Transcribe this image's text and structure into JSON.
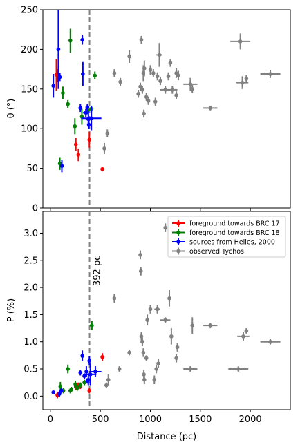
{
  "chart_data": [
    {
      "type": "scatter",
      "panel": "top",
      "xlabel": "",
      "ylabel": "θ (°)",
      "xlim": [
        -75,
        2400
      ],
      "ylim": [
        0,
        250
      ],
      "yticks": [
        "0",
        "50",
        "100",
        "150",
        "200",
        "250"
      ],
      "vline": {
        "x": 392,
        "style": "dashed",
        "color": "#808080"
      },
      "series": [
        {
          "key": "brc17",
          "color": "#ff0000",
          "points": [
            {
              "x": 60,
              "y": 168,
              "yerr": 20,
              "xerr": 0
            },
            {
              "x": 75,
              "y": 167,
              "yerr": 8,
              "xerr": 0
            },
            {
              "x": 255,
              "y": 80,
              "yerr": 8,
              "xerr": 0
            },
            {
              "x": 280,
              "y": 67,
              "yerr": 8,
              "xerr": 0
            },
            {
              "x": 390,
              "y": 86,
              "yerr": 10,
              "xerr": 0
            },
            {
              "x": 520,
              "y": 49,
              "yerr": 3,
              "xerr": 0
            }
          ]
        },
        {
          "key": "brc18",
          "color": "#008000",
          "points": [
            {
              "x": 95,
              "y": 56,
              "yerr": 8,
              "xerr": 0
            },
            {
              "x": 125,
              "y": 145,
              "yerr": 8,
              "xerr": 0
            },
            {
              "x": 175,
              "y": 131,
              "yerr": 5,
              "xerr": 0
            },
            {
              "x": 200,
              "y": 211,
              "yerr": 15,
              "xerr": 0
            },
            {
              "x": 245,
              "y": 103,
              "yerr": 10,
              "xerr": 0
            },
            {
              "x": 315,
              "y": 115,
              "yerr": 10,
              "xerr": 0
            },
            {
              "x": 375,
              "y": 123,
              "yerr": 5,
              "xerr": 0
            },
            {
              "x": 410,
              "y": 125,
              "yerr": 4,
              "xerr": 0
            },
            {
              "x": 445,
              "y": 167,
              "yerr": 5,
              "xerr": 0
            }
          ]
        },
        {
          "key": "heiles",
          "color": "#0000ff",
          "points": [
            {
              "x": 30,
              "y": 154,
              "yerr": 15,
              "xerr": 0
            },
            {
              "x": 80,
              "y": 200,
              "yerr": 50,
              "xerr": 0
            },
            {
              "x": 95,
              "y": 165,
              "yerr": 5,
              "xerr": 0
            },
            {
              "x": 115,
              "y": 53,
              "yerr": 8,
              "xerr": 0
            },
            {
              "x": 300,
              "y": 126,
              "yerr": 5,
              "xerr": 0
            },
            {
              "x": 320,
              "y": 212,
              "yerr": 6,
              "xerr": 0
            },
            {
              "x": 325,
              "y": 169,
              "yerr": 15,
              "xerr": 0
            },
            {
              "x": 355,
              "y": 120,
              "yerr": 5,
              "xerr": 30
            },
            {
              "x": 370,
              "y": 127,
              "yerr": 4,
              "xerr": 0
            },
            {
              "x": 380,
              "y": 112,
              "yerr": 10,
              "xerr": 0
            },
            {
              "x": 385,
              "y": 105,
              "yerr": 5,
              "xerr": 0
            },
            {
              "x": 410,
              "y": 113,
              "yerr": 15,
              "xerr": 100
            }
          ]
        },
        {
          "key": "tychos",
          "color": "#808080",
          "points": [
            {
              "x": 540,
              "y": 75,
              "yerr": 7,
              "xerr": 0
            },
            {
              "x": 570,
              "y": 94,
              "yerr": 5,
              "xerr": 0
            },
            {
              "x": 640,
              "y": 170,
              "yerr": 5,
              "xerr": 0
            },
            {
              "x": 700,
              "y": 159,
              "yerr": 5,
              "xerr": 0
            },
            {
              "x": 790,
              "y": 191,
              "yerr": 8,
              "xerr": 0
            },
            {
              "x": 880,
              "y": 144,
              "yerr": 5,
              "xerr": 0
            },
            {
              "x": 900,
              "y": 153,
              "yerr": 5,
              "xerr": 0
            },
            {
              "x": 910,
              "y": 212,
              "yerr": 5,
              "xerr": 0
            },
            {
              "x": 920,
              "y": 149,
              "yerr": 5,
              "xerr": 0
            },
            {
              "x": 930,
              "y": 170,
              "yerr": 10,
              "xerr": 0
            },
            {
              "x": 935,
              "y": 119,
              "yerr": 5,
              "xerr": 0
            },
            {
              "x": 940,
              "y": 176,
              "yerr": 10,
              "xerr": 0
            },
            {
              "x": 960,
              "y": 140,
              "yerr": 5,
              "xerr": 0
            },
            {
              "x": 980,
              "y": 135,
              "yerr": 5,
              "xerr": 0
            },
            {
              "x": 1000,
              "y": 174,
              "yerr": 6,
              "xerr": 0
            },
            {
              "x": 1030,
              "y": 170,
              "yerr": 5,
              "xerr": 0
            },
            {
              "x": 1050,
              "y": 134,
              "yerr": 5,
              "xerr": 0
            },
            {
              "x": 1070,
              "y": 166,
              "yerr": 5,
              "xerr": 0
            },
            {
              "x": 1090,
              "y": 193,
              "yerr": 15,
              "xerr": 30
            },
            {
              "x": 1100,
              "y": 160,
              "yerr": 5,
              "xerr": 0
            },
            {
              "x": 1150,
              "y": 149,
              "yerr": 5,
              "xerr": 50
            },
            {
              "x": 1180,
              "y": 166,
              "yerr": 5,
              "xerr": 0
            },
            {
              "x": 1200,
              "y": 183,
              "yerr": 5,
              "xerr": 0
            },
            {
              "x": 1220,
              "y": 149,
              "yerr": 5,
              "xerr": 50
            },
            {
              "x": 1260,
              "y": 142,
              "yerr": 5,
              "xerr": 0
            },
            {
              "x": 1260,
              "y": 170,
              "yerr": 6,
              "xerr": 0
            },
            {
              "x": 1280,
              "y": 167,
              "yerr": 6,
              "xerr": 0
            },
            {
              "x": 1400,
              "y": 156,
              "yerr": 8,
              "xerr": 70
            },
            {
              "x": 1420,
              "y": 150,
              "yerr": 5,
              "xerr": 0
            },
            {
              "x": 1600,
              "y": 126,
              "yerr": 3,
              "xerr": 70
            },
            {
              "x": 1900,
              "y": 210,
              "yerr": 10,
              "xerr": 100
            },
            {
              "x": 1920,
              "y": 158,
              "yerr": 8,
              "xerr": 60
            },
            {
              "x": 1960,
              "y": 163,
              "yerr": 5,
              "xerr": 0
            },
            {
              "x": 2200,
              "y": 169,
              "yerr": 5,
              "xerr": 100
            }
          ]
        }
      ]
    },
    {
      "type": "scatter",
      "panel": "bottom",
      "xlabel": "Distance (pc)",
      "ylabel": "P (%)",
      "xlim": [
        -75,
        2400
      ],
      "ylim": [
        -0.25,
        3.4
      ],
      "xticks": [
        "0",
        "500",
        "1000",
        "1500",
        "2000"
      ],
      "yticks": [
        "0.0",
        "0.5",
        "1.0",
        "1.5",
        "2.0",
        "2.5",
        "3.0"
      ],
      "vline": {
        "x": 392,
        "style": "dashed",
        "color": "#808080",
        "label": "392 pc"
      },
      "legend": {
        "position": "top-right",
        "entries": [
          {
            "key": "brc17",
            "label": "foreground towards BRC 17",
            "color": "#ff0000"
          },
          {
            "key": "brc18",
            "label": "foreground towards BRC 18",
            "color": "#008000"
          },
          {
            "key": "heiles",
            "label": "sources from Heiles, 2000",
            "color": "#0000ff"
          },
          {
            "key": "tychos",
            "label": "observed Tychos",
            "color": "#808080"
          }
        ]
      },
      "series": [
        {
          "key": "brc17",
          "color": "#ff0000",
          "points": [
            {
              "x": 70,
              "y": 0.02,
              "yerr": 0.06,
              "xerr": 0
            },
            {
              "x": 255,
              "y": 0.17,
              "yerr": 0.06,
              "xerr": 0
            },
            {
              "x": 280,
              "y": 0.2,
              "yerr": 0.05,
              "xerr": 0
            },
            {
              "x": 300,
              "y": 0.18,
              "yerr": 0.05,
              "xerr": 0
            },
            {
              "x": 390,
              "y": 0.1,
              "yerr": 0.05,
              "xerr": 0
            },
            {
              "x": 520,
              "y": 0.72,
              "yerr": 0.07,
              "xerr": 0
            }
          ]
        },
        {
          "key": "brc18",
          "color": "#008000",
          "points": [
            {
              "x": 100,
              "y": 0.18,
              "yerr": 0.08,
              "xerr": 0
            },
            {
              "x": 130,
              "y": 0.1,
              "yerr": 0.05,
              "xerr": 0
            },
            {
              "x": 175,
              "y": 0.5,
              "yerr": 0.08,
              "xerr": 0
            },
            {
              "x": 200,
              "y": 0.1,
              "yerr": 0.05,
              "xerr": 0
            },
            {
              "x": 210,
              "y": 0.12,
              "yerr": 0.05,
              "xerr": 0
            },
            {
              "x": 250,
              "y": 0.22,
              "yerr": 0.06,
              "xerr": 0
            },
            {
              "x": 270,
              "y": 0.15,
              "yerr": 0.05,
              "xerr": 0
            },
            {
              "x": 300,
              "y": 0.2,
              "yerr": 0.05,
              "xerr": 0
            },
            {
              "x": 340,
              "y": 0.25,
              "yerr": 0.05,
              "xerr": 0
            },
            {
              "x": 415,
              "y": 1.3,
              "yerr": 0.08,
              "xerr": 0
            }
          ]
        },
        {
          "key": "heiles",
          "color": "#0000ff",
          "points": [
            {
              "x": 30,
              "y": 0.07,
              "yerr": 0.03,
              "xerr": 0
            },
            {
              "x": 90,
              "y": 0.04,
              "yerr": 0.05,
              "xerr": 0
            },
            {
              "x": 110,
              "y": 0.1,
              "yerr": 0.05,
              "xerr": 0
            },
            {
              "x": 300,
              "y": 0.43,
              "yerr": 0.05,
              "xerr": 0
            },
            {
              "x": 320,
              "y": 0.74,
              "yerr": 0.1,
              "xerr": 0
            },
            {
              "x": 340,
              "y": 0.37,
              "yerr": 0.05,
              "xerr": 0
            },
            {
              "x": 360,
              "y": 0.45,
              "yerr": 0.1,
              "xerr": 0
            },
            {
              "x": 370,
              "y": 0.28,
              "yerr": 0.05,
              "xerr": 0
            },
            {
              "x": 380,
              "y": 0.3,
              "yerr": 0.1,
              "xerr": 0
            },
            {
              "x": 390,
              "y": 0.65,
              "yerr": 0.08,
              "xerr": 0
            },
            {
              "x": 400,
              "y": 0.4,
              "yerr": 0.2,
              "xerr": 60
            },
            {
              "x": 450,
              "y": 0.45,
              "yerr": 0.1,
              "xerr": 60
            }
          ]
        },
        {
          "key": "tychos",
          "color": "#808080",
          "points": [
            {
              "x": 560,
              "y": 0.2,
              "yerr": 0.05,
              "xerr": 0
            },
            {
              "x": 580,
              "y": 0.3,
              "yerr": 0.1,
              "xerr": 0
            },
            {
              "x": 640,
              "y": 1.8,
              "yerr": 0.08,
              "xerr": 0
            },
            {
              "x": 690,
              "y": 0.5,
              "yerr": 0.05,
              "xerr": 0
            },
            {
              "x": 790,
              "y": 0.8,
              "yerr": 0.05,
              "xerr": 0
            },
            {
              "x": 900,
              "y": 2.6,
              "yerr": 0.08,
              "xerr": 0
            },
            {
              "x": 905,
              "y": 2.3,
              "yerr": 0.08,
              "xerr": 0
            },
            {
              "x": 910,
              "y": 1.1,
              "yerr": 0.08,
              "xerr": 0
            },
            {
              "x": 920,
              "y": 1.0,
              "yerr": 0.08,
              "xerr": 0
            },
            {
              "x": 930,
              "y": 0.8,
              "yerr": 0.08,
              "xerr": 0
            },
            {
              "x": 935,
              "y": 0.4,
              "yerr": 0.08,
              "xerr": 0
            },
            {
              "x": 940,
              "y": 0.3,
              "yerr": 0.08,
              "xerr": 0
            },
            {
              "x": 960,
              "y": 0.7,
              "yerr": 0.05,
              "xerr": 0
            },
            {
              "x": 970,
              "y": 1.4,
              "yerr": 0.1,
              "xerr": 0
            },
            {
              "x": 1000,
              "y": 1.6,
              "yerr": 0.08,
              "xerr": 0
            },
            {
              "x": 1040,
              "y": 0.3,
              "yerr": 0.08,
              "xerr": 0
            },
            {
              "x": 1060,
              "y": 0.5,
              "yerr": 0.08,
              "xerr": 0
            },
            {
              "x": 1070,
              "y": 1.6,
              "yerr": 0.08,
              "xerr": 30
            },
            {
              "x": 1080,
              "y": 0.6,
              "yerr": 0.08,
              "xerr": 0
            },
            {
              "x": 1150,
              "y": 3.1,
              "yerr": 0.08,
              "xerr": 0
            },
            {
              "x": 1150,
              "y": 1.4,
              "yerr": 0.05,
              "xerr": 50
            },
            {
              "x": 1190,
              "y": 1.8,
              "yerr": 0.15,
              "xerr": 0
            },
            {
              "x": 1210,
              "y": 1.1,
              "yerr": 0.15,
              "xerr": 0
            },
            {
              "x": 1260,
              "y": 0.7,
              "yerr": 0.08,
              "xerr": 0
            },
            {
              "x": 1270,
              "y": 0.9,
              "yerr": 0.08,
              "xerr": 0
            },
            {
              "x": 1400,
              "y": 0.5,
              "yerr": 0.05,
              "xerr": 70
            },
            {
              "x": 1420,
              "y": 1.3,
              "yerr": 0.15,
              "xerr": 0
            },
            {
              "x": 1600,
              "y": 1.3,
              "yerr": 0.05,
              "xerr": 70
            },
            {
              "x": 1880,
              "y": 0.5,
              "yerr": 0.05,
              "xerr": 100
            },
            {
              "x": 1930,
              "y": 1.1,
              "yerr": 0.08,
              "xerr": 60
            },
            {
              "x": 1960,
              "y": 1.2,
              "yerr": 0.05,
              "xerr": 0
            },
            {
              "x": 2200,
              "y": 1.0,
              "yerr": 0.05,
              "xerr": 100
            }
          ]
        }
      ]
    }
  ]
}
